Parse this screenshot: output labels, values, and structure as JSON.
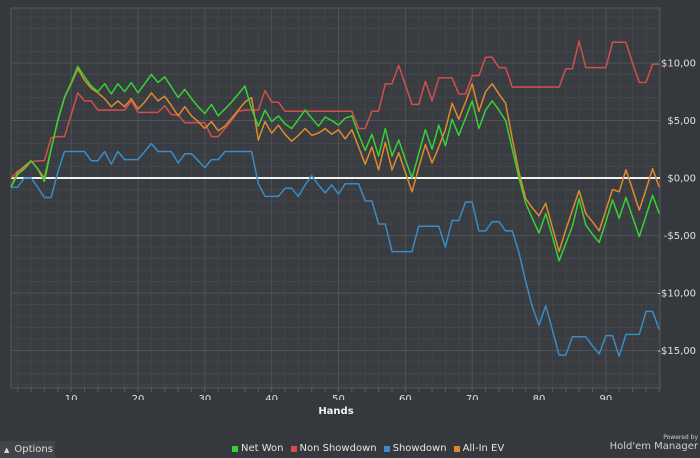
{
  "chart_data": {
    "type": "line",
    "title": "",
    "xlabel": "Hands",
    "ylabel": "",
    "xlim": [
      1,
      98.1
    ],
    "ylim": [
      -18.26,
      14.78
    ],
    "x_ticks": [
      10,
      20,
      30,
      40,
      50,
      60,
      70,
      80,
      90
    ],
    "y_ticks": [
      {
        "value": 10,
        "label": "$10,00"
      },
      {
        "value": 5,
        "label": "$5,00"
      },
      {
        "value": 0,
        "label": "$0,00"
      },
      {
        "value": -5,
        "label": "-$5,00"
      },
      {
        "value": -10,
        "label": "-$10,00"
      },
      {
        "value": -15,
        "label": "-$15,00"
      }
    ],
    "grid": true,
    "legend_position": "bottom",
    "x_start": 1,
    "series": [
      {
        "name": "Net Won",
        "color": "#36d236",
        "values": [
          -0.8,
          0.3,
          0.8,
          1.5,
          0.8,
          -0.3,
          2.5,
          5,
          7,
          8.3,
          9.7,
          8.8,
          8,
          7.5,
          8.2,
          7.3,
          8.2,
          7.5,
          8.3,
          7.4,
          8.2,
          9.0,
          8.3,
          8.8,
          7.9,
          7,
          7.7,
          6.9,
          6.2,
          5.6,
          6.4,
          5.4,
          6,
          6.6,
          7.3,
          8,
          6,
          4.5,
          5.9,
          4.9,
          5.4,
          4.7,
          4.3,
          5.1,
          5.9,
          5.2,
          4.5,
          5.3,
          5.0,
          4.6,
          5.2,
          5.4,
          3.8,
          2.4,
          3.8,
          1.9,
          4.3,
          1.9,
          3.3,
          1.6,
          0.0,
          2.1,
          4.2,
          2.5,
          4.6,
          2.8,
          5.1,
          3.7,
          5.2,
          6.7,
          4.3,
          5.9,
          6.7,
          5.9,
          5.0,
          2.5,
          0,
          -2.2,
          -3.5,
          -4.8,
          -3.1,
          -5.1,
          -7.2,
          -5.7,
          -4.2,
          -1.8,
          -4.1,
          -4.9,
          -5.6,
          -3.8,
          -1.9,
          -3.5,
          -1.7,
          -3.4,
          -5.1,
          -3.3,
          -1.5,
          -3.1
        ]
      },
      {
        "name": "Non Showdown",
        "color": "#d24f4b",
        "values": [
          0,
          0.6,
          0.8,
          1.4,
          1.5,
          1.5,
          3.5,
          3.6,
          3.6,
          5.5,
          7.4,
          6.7,
          6.7,
          5.9,
          5.9,
          5.9,
          5.9,
          5.9,
          6.7,
          5.7,
          5.7,
          5.7,
          5.7,
          6.3,
          5.5,
          5.5,
          4.8,
          4.8,
          4.8,
          4.8,
          3.6,
          3.6,
          4.3,
          5.0,
          5.8,
          5.9,
          5.9,
          5.9,
          7.6,
          6.6,
          6.6,
          5.8,
          5.8,
          5.8,
          5.8,
          5.8,
          5.8,
          5.8,
          5.8,
          5.8,
          5.8,
          5.8,
          4.3,
          4.3,
          5.8,
          5.8,
          8.2,
          8.2,
          9.8,
          8.1,
          6.4,
          6.4,
          8.4,
          6.7,
          8.7,
          8.7,
          8.7,
          7.3,
          7.3,
          8.9,
          8.9,
          10.5,
          10.5,
          9.6,
          9.6,
          7.9,
          7.9,
          7.9,
          7.9,
          7.9,
          7.9,
          7.9,
          7.9,
          9.5,
          9.5,
          11.9,
          9.6,
          9.6,
          9.6,
          9.6,
          11.8,
          11.8,
          11.8,
          10,
          8.3,
          8.3,
          9.9,
          9.9
        ]
      },
      {
        "name": "Showdown",
        "color": "#3a8cc6",
        "values": [
          -0.8,
          -0.8,
          0,
          0,
          -0.8,
          -1.7,
          -1.7,
          0.5,
          2.3,
          2.3,
          2.3,
          2.3,
          1.5,
          1.5,
          2.3,
          1.2,
          2.3,
          1.6,
          1.6,
          1.6,
          2.3,
          3.0,
          2.3,
          2.3,
          2.3,
          1.3,
          2.1,
          2.1,
          1.5,
          0.9,
          1.6,
          1.6,
          2.3,
          2.3,
          2.3,
          2.3,
          2.3,
          -0.5,
          -1.6,
          -1.6,
          -1.6,
          -0.9,
          -0.9,
          -1.6,
          -0.6,
          0.2,
          -0.6,
          -1.3,
          -0.6,
          -1.4,
          -0.5,
          -0.5,
          -0.5,
          -2.0,
          -2.0,
          -4.0,
          -4.0,
          -6.4,
          -6.4,
          -6.4,
          -6.4,
          -4.2,
          -4.2,
          -4.2,
          -4.2,
          -6.0,
          -3.7,
          -3.7,
          -2.1,
          -2.1,
          -4.6,
          -4.6,
          -3.8,
          -3.8,
          -4.6,
          -4.6,
          -6.5,
          -9,
          -11.2,
          -12.8,
          -11.1,
          -13.2,
          -15.4,
          -15.4,
          -13.8,
          -13.8,
          -13.8,
          -14.6,
          -15.3,
          -13.7,
          -13.7,
          -15.5,
          -13.6,
          -13.6,
          -13.6,
          -11.6,
          -11.6,
          -13.2
        ]
      },
      {
        "name": "All-In EV",
        "color": "#e08a2e",
        "values": [
          -0.8,
          0.5,
          1.0,
          1.5,
          0.8,
          0,
          2.5,
          5,
          7,
          8.2,
          9.5,
          8.5,
          7.8,
          7.4,
          6.9,
          6.2,
          6.7,
          6.2,
          6.9,
          6.0,
          6.6,
          7.4,
          6.7,
          7.1,
          6.3,
          5.4,
          6.2,
          5.4,
          4.9,
          4.3,
          4.9,
          4.1,
          4.5,
          5.2,
          5.9,
          6.6,
          7.0,
          3.3,
          4.9,
          3.9,
          4.6,
          3.8,
          3.2,
          3.7,
          4.3,
          3.7,
          3.9,
          4.3,
          3.8,
          4.2,
          3.4,
          4.2,
          2.7,
          1.2,
          2.7,
          0.7,
          3.1,
          0.7,
          2.2,
          0.5,
          -1.2,
          0.9,
          2.9,
          1.3,
          2.7,
          4.2,
          6.5,
          5.1,
          6.6,
          8.2,
          5.8,
          7.5,
          8.2,
          7.3,
          6.5,
          3.4,
          0.5,
          -1.8,
          -2.6,
          -3.3,
          -2.2,
          -4.3,
          -6.4,
          -4.5,
          -2.8,
          -1.1,
          -3.1,
          -3.8,
          -4.6,
          -2.8,
          -1.0,
          -1.2,
          0.7,
          -1.0,
          -2.8,
          -1.0,
          0.8,
          -0.8
        ]
      }
    ]
  },
  "footer": {
    "options_label": "Options",
    "options_icon": "chevron-up-icon",
    "powered_by": "Powered by",
    "brand": "Hold'em Manager"
  }
}
